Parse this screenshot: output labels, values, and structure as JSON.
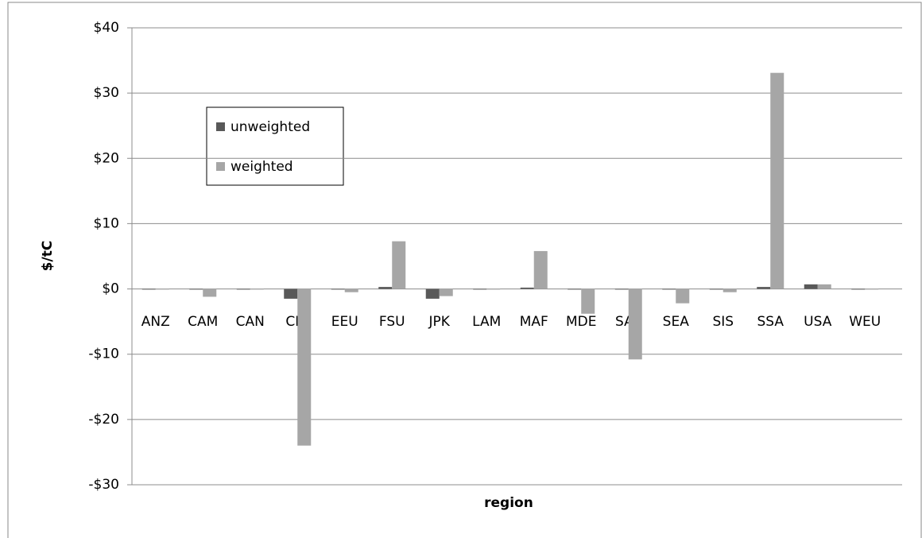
{
  "chart_data": {
    "type": "bar",
    "x_label": "region",
    "y_label": "$/tC",
    "categories": [
      "ANZ",
      "CAM",
      "CAN",
      "CHI",
      "EEU",
      "FSU",
      "JPK",
      "LAM",
      "MAF",
      "MDE",
      "SAS",
      "SEA",
      "SIS",
      "SSA",
      "USA",
      "WEU"
    ],
    "series": [
      {
        "name": "unweighted",
        "color": "#595959",
        "values": [
          -0.1,
          -0.1,
          -0.1,
          -1.5,
          -0.1,
          0.3,
          -1.5,
          -0.1,
          0.2,
          -0.1,
          -0.1,
          -0.1,
          -0.1,
          0.3,
          0.7,
          -0.1
        ]
      },
      {
        "name": "weighted",
        "color": "#a6a6a6",
        "values": [
          -0.1,
          -1.2,
          -0.1,
          -24,
          -0.5,
          7.3,
          -1.1,
          -0.1,
          5.8,
          -3.8,
          -10.8,
          -2.2,
          -0.5,
          33.1,
          0.7,
          -0.1
        ]
      }
    ],
    "ylim": [
      -30,
      40
    ],
    "yticks": [
      {
        "value": -30,
        "label": "-$30"
      },
      {
        "value": -20,
        "label": "-$20"
      },
      {
        "value": -10,
        "label": "-$10"
      },
      {
        "value": 0,
        "label": "$0"
      },
      {
        "value": 10,
        "label": "$10"
      },
      {
        "value": 20,
        "label": "$20"
      },
      {
        "value": 30,
        "label": "$30"
      },
      {
        "value": 40,
        "label": "$40"
      }
    ],
    "grid": true
  }
}
